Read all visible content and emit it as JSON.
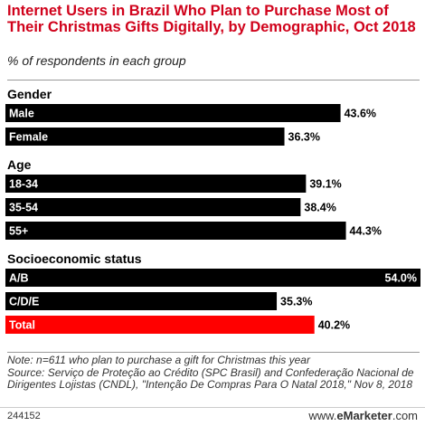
{
  "title": "Internet Users in Brazil Who Plan to Purchase Most of Their Christmas Gifts Digitally, by Demographic, Oct 2018",
  "subtitle": "% of respondents in each group",
  "note": "Note: n=611 who plan to purchase a gift for Christmas this year",
  "source": "Source: Serviço de Proteção ao Crédito (SPC Brasil) and Confederação Nacional de Dirigentes Lojistas (CNDL), \"Intenção De Compras Para O Natal 2018,\" Nov 8, 2018",
  "chart_id": "244152",
  "brand": {
    "prefix": "www.",
    "name": "eMarketer",
    "suffix": ".com"
  },
  "colors": {
    "bar": "#000000",
    "highlight": "#ff0000",
    "title": "#d0021b"
  },
  "chart_data": {
    "type": "bar",
    "orientation": "horizontal",
    "unit": "%",
    "xlim": [
      0,
      54
    ],
    "groups": [
      {
        "name": "Gender",
        "items": [
          {
            "label": "Male",
            "value": 43.6,
            "value_label": "43.6%"
          },
          {
            "label": "Female",
            "value": 36.3,
            "value_label": "36.3%"
          }
        ]
      },
      {
        "name": "Age",
        "items": [
          {
            "label": "18-34",
            "value": 39.1,
            "value_label": "39.1%"
          },
          {
            "label": "35-54",
            "value": 38.4,
            "value_label": "38.4%"
          },
          {
            "label": "55+",
            "value": 44.3,
            "value_label": "44.3%"
          }
        ]
      },
      {
        "name": "Socioeconomic status",
        "items": [
          {
            "label": "A/B",
            "value": 54.0,
            "value_label": "54.0%"
          },
          {
            "label": "C/D/E",
            "value": 35.3,
            "value_label": "35.3%"
          },
          {
            "label": "Total",
            "value": 40.2,
            "value_label": "40.2%",
            "highlight": true
          }
        ]
      }
    ]
  }
}
